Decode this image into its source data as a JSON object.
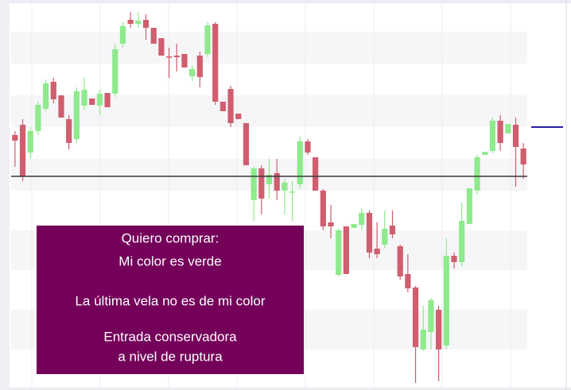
{
  "chart_data": {
    "type": "candlestick",
    "ylim": [
      0,
      483
    ],
    "up_color": "#8eea8c",
    "down_color": "#cf5e6e",
    "open": [
      318,
      331,
      296,
      323,
      351,
      385,
      368,
      338,
      313,
      355,
      364,
      355,
      371,
      370,
      433,
      463,
      458,
      463,
      453,
      440,
      417,
      418,
      420,
      392,
      418,
      420,
      458,
      360,
      376,
      345,
      333,
      236,
      276,
      256,
      270,
      248,
      246,
      256,
      310,
      290,
      248,
      208,
      142,
      203,
      201,
      205,
      220,
      175,
      180,
      204,
      178,
      143,
      126,
      48,
      70,
      98,
      53,
      166,
      158,
      206,
      248,
      293,
      298,
      336,
      320,
      331,
      301
    ],
    "high": [
      323,
      338,
      328,
      360,
      388,
      390,
      368,
      343,
      378,
      390,
      364,
      375,
      371,
      433,
      460,
      473,
      473,
      470,
      453,
      440,
      428,
      433,
      420,
      406,
      423,
      460,
      460,
      360,
      380,
      345,
      333,
      278,
      280,
      288,
      288,
      263,
      260,
      316,
      313,
      290,
      250,
      230,
      200,
      203,
      206,
      226,
      223,
      208,
      223,
      223,
      180,
      168,
      128,
      103,
      113,
      103,
      188,
      170,
      233,
      251,
      293,
      297,
      340,
      343,
      332,
      340,
      308
    ],
    "low": [
      278,
      260,
      288,
      318,
      348,
      358,
      340,
      300,
      308,
      350,
      356,
      343,
      353,
      366,
      428,
      453,
      453,
      438,
      433,
      418,
      390,
      398,
      403,
      386,
      378,
      416,
      356,
      348,
      328,
      338,
      280,
      210,
      218,
      238,
      236,
      218,
      210,
      250,
      293,
      248,
      198,
      188,
      140,
      143,
      201,
      198,
      163,
      163,
      176,
      188,
      136,
      120,
      6,
      46,
      48,
      8,
      48,
      150,
      153,
      206,
      243,
      293,
      295,
      298,
      320,
      253,
      263
    ],
    "close": [
      311,
      266,
      323,
      356,
      383,
      363,
      340,
      308,
      373,
      375,
      356,
      370,
      353,
      426,
      455,
      458,
      462,
      453,
      433,
      418,
      416,
      416,
      403,
      401,
      391,
      456,
      360,
      348,
      333,
      338,
      280,
      276,
      238,
      268,
      248,
      258,
      247,
      310,
      296,
      248,
      203,
      203,
      198,
      143,
      206,
      220,
      170,
      168,
      200,
      193,
      140,
      125,
      51,
      73,
      110,
      48,
      166,
      158,
      210,
      251,
      290,
      297,
      336,
      308,
      332,
      303,
      281
    ],
    "hlines": [
      {
        "value": 266,
        "color": "#3a3a3a",
        "extent": "plot"
      },
      {
        "value": 328,
        "color": "#2b1fa6",
        "extent": "margin"
      }
    ],
    "annotation": {
      "color": "#74005a",
      "lines": [
        "Quiero comprar:",
        "Mi color es verde",
        "La última vela no es de mi color",
        "Entrada conservadora",
        "a nivel de ruptura"
      ]
    }
  }
}
